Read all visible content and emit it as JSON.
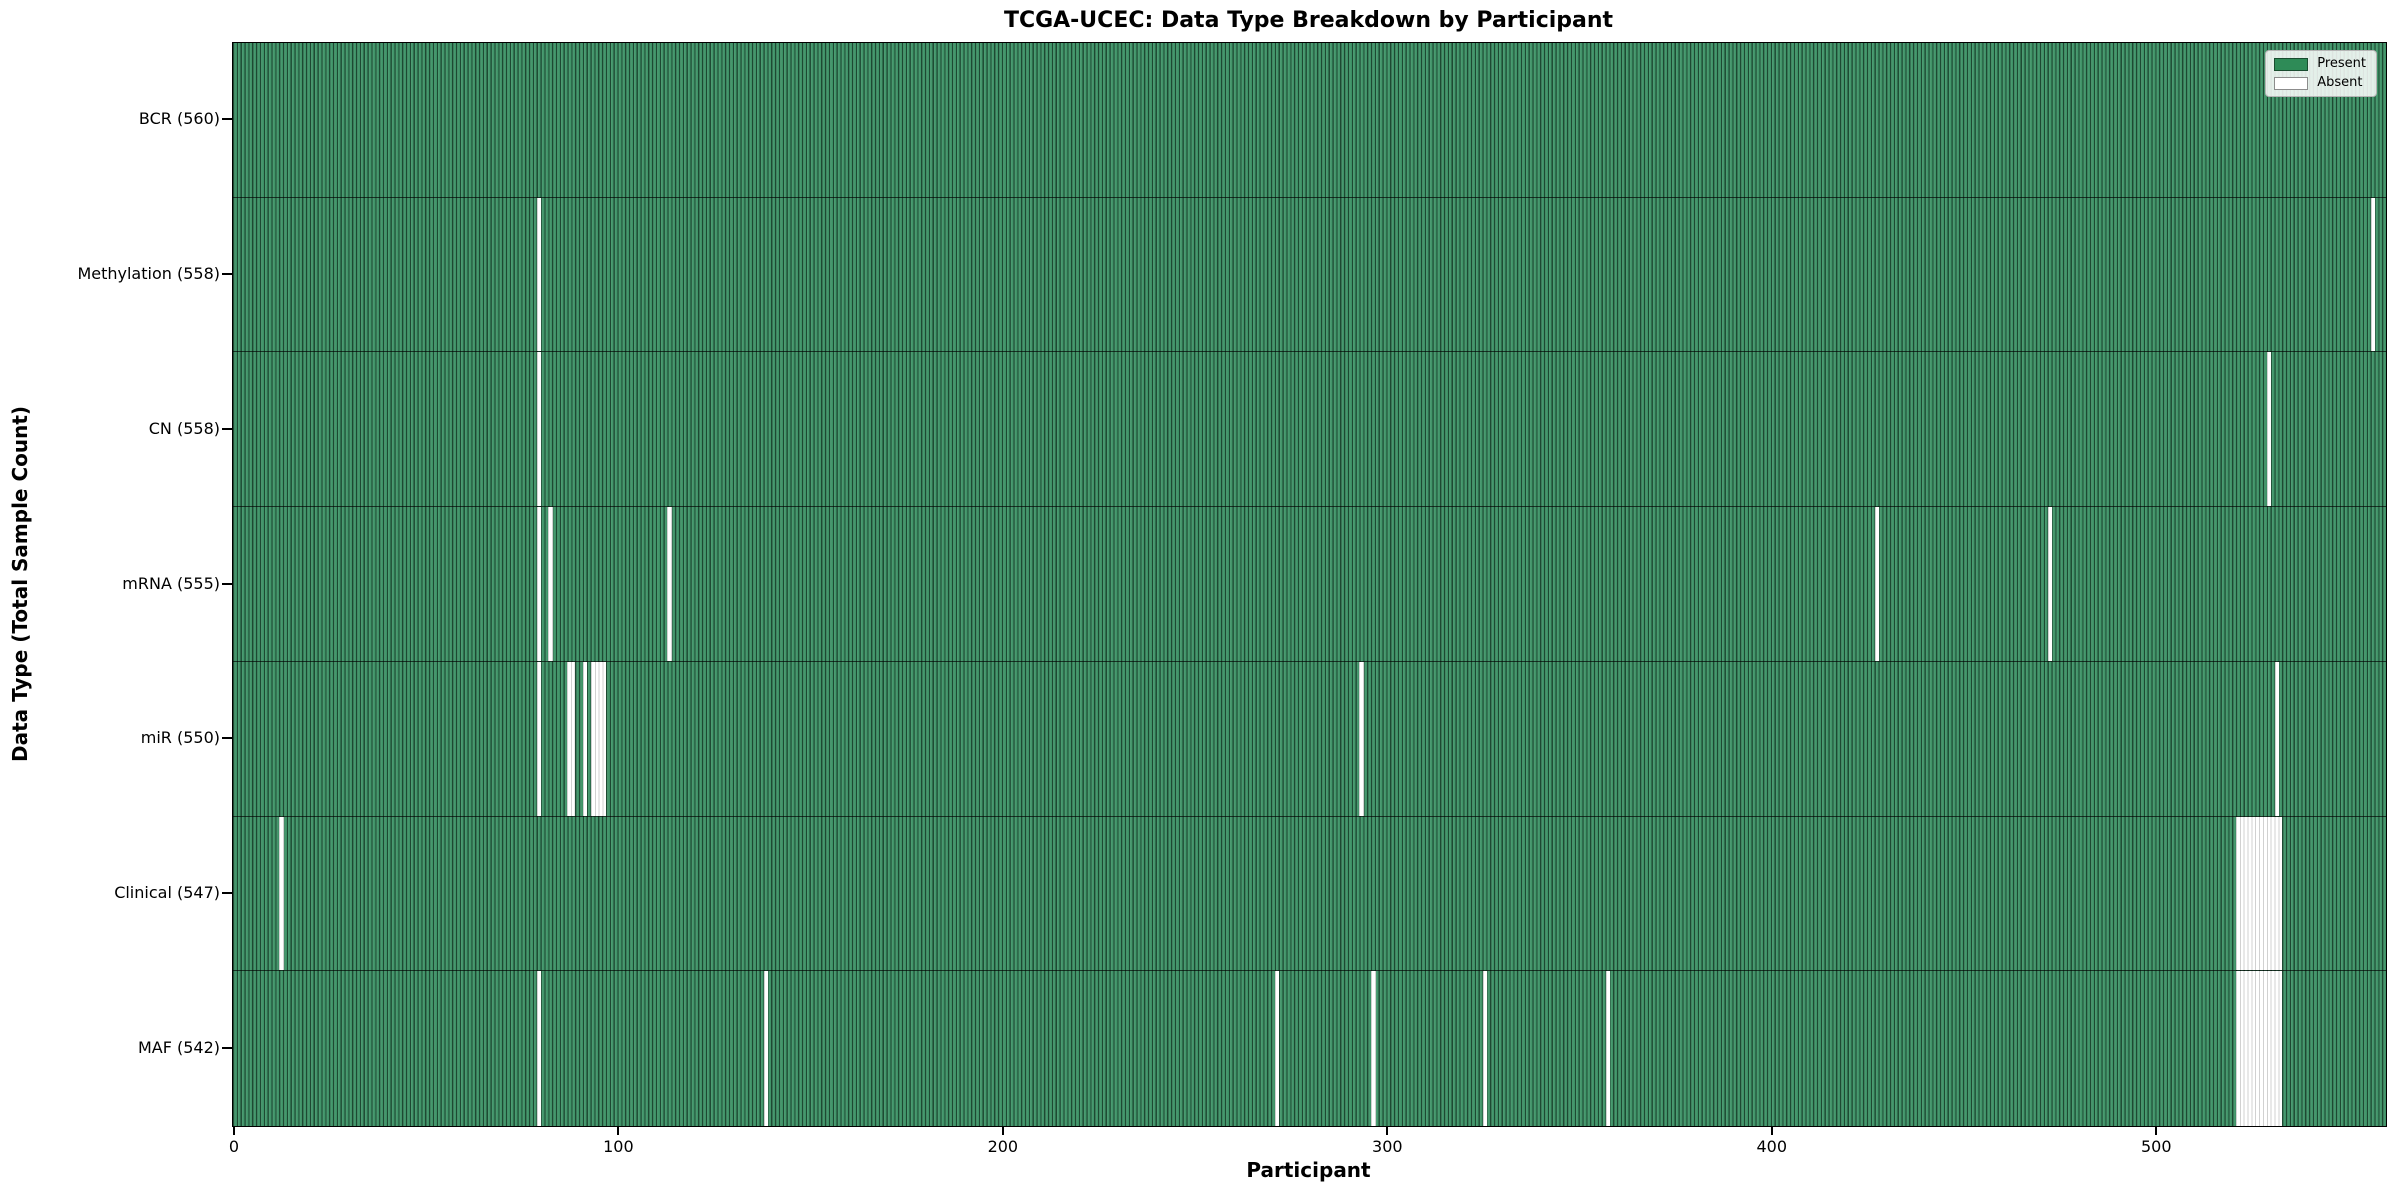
{
  "figure": {
    "title": "TCGA-UCEC: Data Type Breakdown by Participant",
    "xlabel": "Participant",
    "ylabel": "Data Type (Total Sample Count)"
  },
  "legend": {
    "items": [
      {
        "name": "present",
        "label": "Present",
        "color": "#2e8b57"
      },
      {
        "name": "absent",
        "label": "Absent",
        "color": "#ffffff"
      }
    ]
  },
  "chart_data": {
    "type": "heatmap",
    "title": "TCGA-UCEC: Data Type Breakdown by Participant",
    "xlabel": "Participant",
    "ylabel": "Data Type (Total Sample Count)",
    "legend_position": "upper right",
    "n_participants": 560,
    "x_ticks": [
      0,
      100,
      200,
      300,
      400,
      500
    ],
    "present_color": "#2e8b57",
    "absent_color": "#ffffff",
    "rows": [
      {
        "label": "BCR",
        "total": 560,
        "tick_label": "BCR (560)",
        "absent_participants": []
      },
      {
        "label": "Methylation",
        "total": 558,
        "tick_label": "Methylation (558)",
        "absent_participants": [
          79,
          556
        ]
      },
      {
        "label": "CN",
        "total": 558,
        "tick_label": "CN (558)",
        "absent_participants": [
          79,
          529
        ]
      },
      {
        "label": "mRNA",
        "total": 555,
        "tick_label": "mRNA (555)",
        "absent_participants": [
          79,
          82,
          113,
          427,
          472
        ]
      },
      {
        "label": "miR",
        "total": 550,
        "tick_label": "miR (550)",
        "absent_participants": [
          79,
          87,
          88,
          91,
          93,
          94,
          95,
          96,
          293,
          531
        ]
      },
      {
        "label": "Clinical",
        "total": 547,
        "tick_label": "Clinical (547)",
        "absent_participants": [
          12,
          521,
          522,
          523,
          524,
          525,
          526,
          527,
          528,
          529,
          530,
          531,
          532
        ]
      },
      {
        "label": "MAF",
        "total": 542,
        "tick_label": "MAF (542)",
        "absent_participants": [
          79,
          138,
          271,
          296,
          325,
          357,
          521,
          522,
          523,
          524,
          525,
          526,
          527,
          528,
          529,
          530,
          531,
          532
        ]
      }
    ]
  }
}
